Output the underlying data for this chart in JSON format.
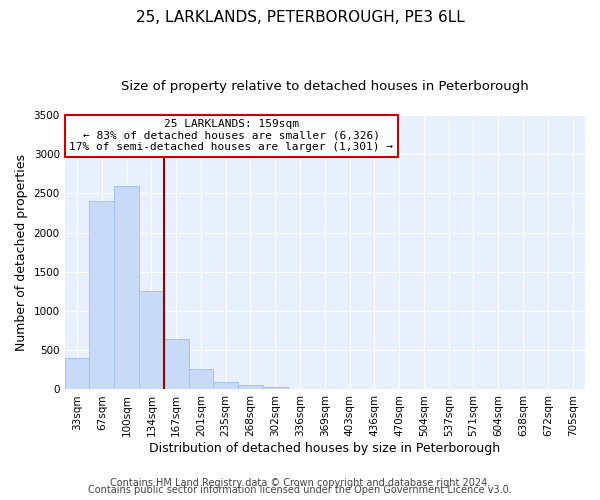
{
  "title": "25, LARKLANDS, PETERBOROUGH, PE3 6LL",
  "subtitle": "Size of property relative to detached houses in Peterborough",
  "xlabel": "Distribution of detached houses by size in Peterborough",
  "ylabel": "Number of detached properties",
  "bar_labels": [
    "33sqm",
    "67sqm",
    "100sqm",
    "134sqm",
    "167sqm",
    "201sqm",
    "235sqm",
    "268sqm",
    "302sqm",
    "336sqm",
    "369sqm",
    "403sqm",
    "436sqm",
    "470sqm",
    "504sqm",
    "537sqm",
    "571sqm",
    "604sqm",
    "638sqm",
    "672sqm",
    "705sqm"
  ],
  "bar_values": [
    400,
    2400,
    2600,
    1250,
    640,
    260,
    100,
    55,
    25,
    0,
    0,
    0,
    0,
    0,
    0,
    0,
    0,
    0,
    0,
    0,
    0
  ],
  "bar_color": "#c9daf8",
  "bar_edge_color": "#a4c2f4",
  "property_line_x": 3.5,
  "property_line_color": "#990000",
  "annotation_text": "25 LARKLANDS: 159sqm\n← 83% of detached houses are smaller (6,326)\n17% of semi-detached houses are larger (1,301) →",
  "annotation_box_color": "#ffffff",
  "annotation_box_edge_color": "#cc0000",
  "ylim": [
    0,
    3500
  ],
  "yticks": [
    0,
    500,
    1000,
    1500,
    2000,
    2500,
    3000,
    3500
  ],
  "footer_line1": "Contains HM Land Registry data © Crown copyright and database right 2024.",
  "footer_line2": "Contains public sector information licensed under the Open Government Licence v3.0.",
  "background_color": "#ffffff",
  "plot_bg_color": "#e8f0fc",
  "grid_color": "#ffffff",
  "title_fontsize": 11,
  "subtitle_fontsize": 9.5,
  "axis_label_fontsize": 9,
  "tick_fontsize": 7.5,
  "annotation_fontsize": 8,
  "footer_fontsize": 7
}
